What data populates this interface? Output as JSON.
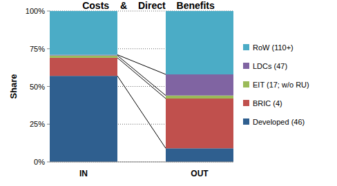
{
  "chart_data": {
    "type": "bar",
    "title": "Costs & Direct Benefits",
    "y_label": "Share",
    "stacked": true,
    "grid": true,
    "legend": "right",
    "categories": [
      "IN",
      "OUT"
    ],
    "ylim": [
      0,
      100
    ],
    "yticks": [
      {
        "value": 0,
        "label": "0%"
      },
      {
        "value": 25,
        "label": "25%"
      },
      {
        "value": 50,
        "label": "50%"
      },
      {
        "value": 75,
        "label": "75%"
      },
      {
        "value": 100,
        "label": "100%"
      }
    ],
    "series": [
      {
        "name": "Developed (46)",
        "color": "#2f5f8f",
        "values": [
          57,
          9
        ]
      },
      {
        "name": "BRIC (4)",
        "color": "#c0504d",
        "values": [
          12,
          33
        ]
      },
      {
        "name": "EIT (17; w/o RU)",
        "color": "#9bbb59",
        "values": [
          1.5,
          2
        ]
      },
      {
        "name": "LDCs (47)",
        "color": "#8064a2",
        "values": [
          0.5,
          14
        ]
      },
      {
        "name": "RoW (110+)",
        "color": "#4bacc6",
        "values": [
          29,
          42
        ]
      }
    ]
  }
}
